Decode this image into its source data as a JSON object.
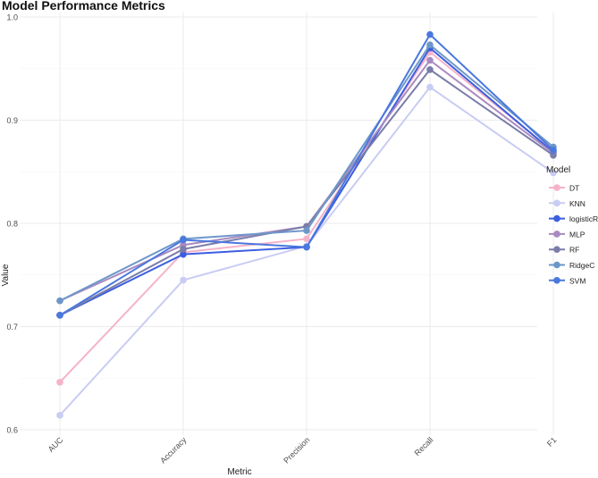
{
  "chart_data": {
    "type": "line",
    "title": "Model Performance Metrics",
    "xlabel": "Metric",
    "ylabel": "Value",
    "categories": [
      "AUC",
      "Accuracy",
      "Precision",
      "Recall",
      "F1"
    ],
    "ylim": [
      0.585,
      1.0
    ],
    "yticks": [
      0.6,
      0.7,
      0.8,
      0.9,
      1.0
    ],
    "ytick_labels": [
      "0.6",
      "0.7",
      "0.8",
      "0.9",
      "1.0"
    ],
    "grid": true,
    "legend_title": "Model",
    "legend_position": "right",
    "series": [
      {
        "name": "DT",
        "color": "#F4B3CA",
        "values": [
          0.646,
          0.772,
          0.785,
          0.966,
          0.87
        ]
      },
      {
        "name": "KNN",
        "color": "#C9CCF3",
        "values": [
          0.614,
          0.745,
          0.778,
          0.932,
          0.849
        ]
      },
      {
        "name": "logisticR",
        "color": "#3C5EDF",
        "values": [
          0.711,
          0.77,
          0.777,
          0.97,
          0.869
        ]
      },
      {
        "name": "MLP",
        "color": "#A98AC0",
        "values": [
          0.725,
          0.779,
          0.797,
          0.958,
          0.868
        ]
      },
      {
        "name": "RF",
        "color": "#7A7DA8",
        "values": [
          0.711,
          0.775,
          0.797,
          0.949,
          0.866
        ]
      },
      {
        "name": "RidgeC",
        "color": "#6D97C9",
        "values": [
          0.725,
          0.785,
          0.793,
          0.973,
          0.874
        ]
      },
      {
        "name": "SVM",
        "color": "#4A78DE",
        "values": [
          0.711,
          0.784,
          0.777,
          0.983,
          0.871
        ]
      }
    ]
  }
}
